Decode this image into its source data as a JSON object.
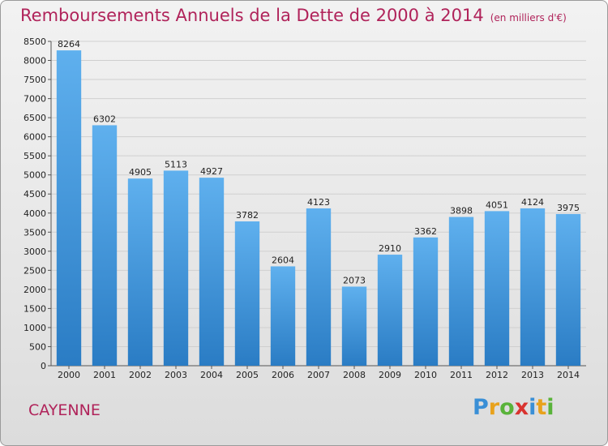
{
  "header": {
    "title": "Remboursements Annuels de la Dette de 2000 à 2014",
    "subtitle": "(en milliers d'€)"
  },
  "footer": {
    "commune": "CAYENNE",
    "logo": {
      "text": "Proxiti",
      "letters": [
        {
          "ch": "P",
          "color": "#3a8fd6"
        },
        {
          "ch": "r",
          "color": "#e8a21c"
        },
        {
          "ch": "o",
          "color": "#59b33a"
        },
        {
          "ch": "x",
          "color": "#d9332f"
        },
        {
          "ch": "i",
          "color": "#3a8fd6"
        },
        {
          "ch": "t",
          "color": "#e8a21c"
        },
        {
          "ch": "i",
          "color": "#59b33a"
        }
      ]
    }
  },
  "colors": {
    "accent": "#b0235a",
    "bar_top": "#5fb0ee",
    "bar_bottom": "#2a7cc4",
    "grid": "#cfcfcf"
  },
  "chart_data": {
    "type": "bar",
    "title": "Remboursements Annuels de la Dette de 2000 à 2014",
    "subtitle": "(en milliers d'€)",
    "categories": [
      "2000",
      "2001",
      "2002",
      "2003",
      "2004",
      "2005",
      "2006",
      "2007",
      "2008",
      "2009",
      "2010",
      "2011",
      "2012",
      "2013",
      "2014"
    ],
    "values": [
      8264,
      6302,
      4905,
      5113,
      4927,
      3782,
      2604,
      4123,
      2073,
      2910,
      3362,
      3898,
      4051,
      4124,
      3975
    ],
    "ylim": [
      0,
      8500
    ],
    "ytick_step": 500,
    "grid": true,
    "xlabel": "",
    "ylabel": ""
  }
}
